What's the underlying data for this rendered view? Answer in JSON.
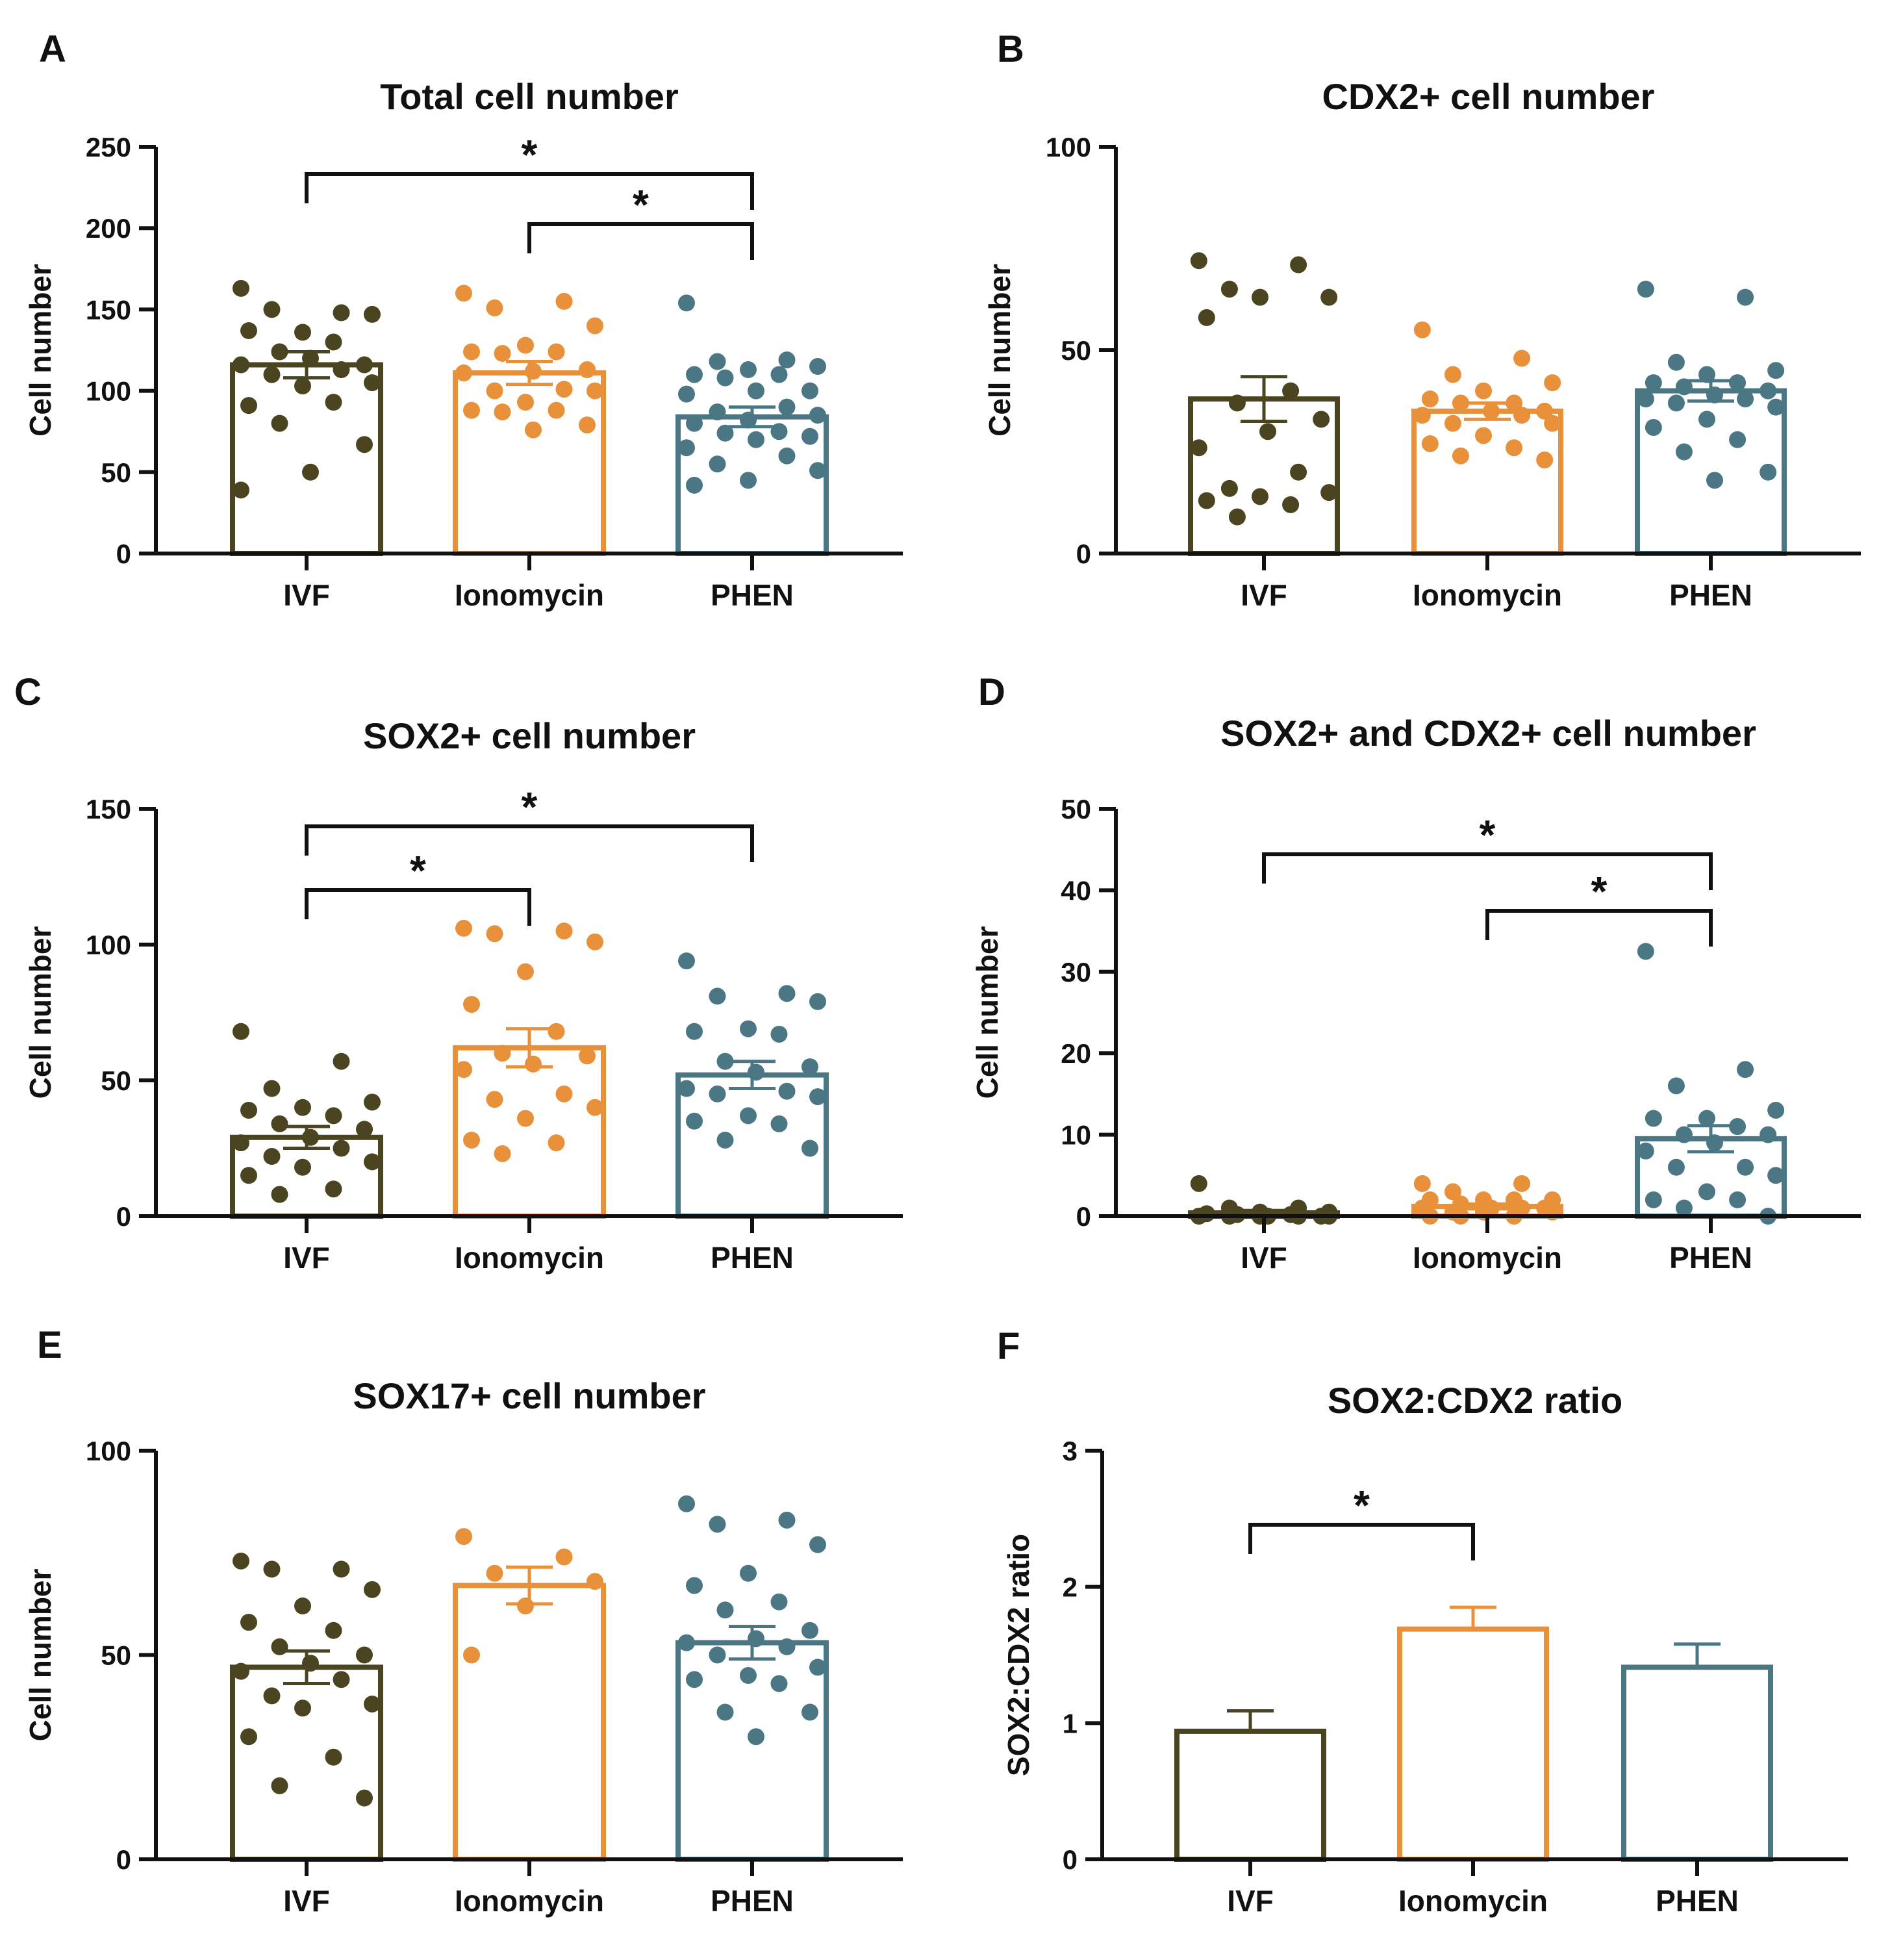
{
  "figure": {
    "groups": [
      "IVF",
      "Ionomycin",
      "PHEN"
    ],
    "colors": {
      "IVF": "#4a4520",
      "Ionomycin": "#e8913a",
      "PHEN": "#4b7785"
    }
  },
  "chart_data": [
    {
      "panel": "A",
      "type": "bar",
      "title": "Total cell number",
      "ylabel": "Cell number",
      "ylim": [
        0,
        250
      ],
      "yticks": [
        0,
        50,
        100,
        150,
        200,
        250
      ],
      "categories": [
        "IVF",
        "Ionomycin",
        "PHEN"
      ],
      "values": [
        116,
        111,
        84
      ],
      "errors": [
        8,
        7,
        6
      ],
      "points": [
        [
          163,
          148,
          150,
          147,
          136,
          137,
          130,
          124,
          116,
          120,
          116,
          113,
          110,
          105,
          103,
          91,
          93,
          80,
          67,
          50,
          39
        ],
        [
          160,
          155,
          151,
          140,
          128,
          124,
          124,
          123,
          113,
          112,
          111,
          101,
          100,
          100,
          93,
          88,
          88,
          87,
          79,
          76
        ],
        [
          154,
          119,
          118,
          115,
          113,
          110,
          110,
          108,
          100,
          100,
          98,
          90,
          87,
          85,
          82,
          80,
          75,
          74,
          72,
          70,
          65,
          60,
          55,
          51,
          45,
          42
        ]
      ],
      "significance": [
        {
          "from": 0,
          "to": 2,
          "label": "*"
        },
        {
          "from": 1,
          "to": 2,
          "label": "*"
        }
      ]
    },
    {
      "panel": "B",
      "type": "bar",
      "title": "CDX2+ cell number",
      "ylabel": "Cell number",
      "ylim": [
        0,
        100
      ],
      "yticks": [
        0,
        50,
        100
      ],
      "categories": [
        "IVF",
        "Ionomycin",
        "PHEN"
      ],
      "values": [
        38,
        35,
        40
      ],
      "errors": [
        5.5,
        2,
        2.5
      ],
      "points": [
        [
          72,
          71,
          65,
          63,
          63,
          58,
          40,
          37,
          33,
          30,
          26,
          20,
          16,
          15,
          14,
          13,
          12,
          9
        ],
        [
          55,
          48,
          44,
          42,
          40,
          38,
          37,
          37,
          35,
          35,
          34,
          34,
          32,
          32,
          29,
          27,
          26,
          24,
          23
        ],
        [
          65,
          63,
          47,
          45,
          44,
          42,
          42,
          41,
          40,
          39,
          38,
          38,
          37,
          36,
          33,
          31,
          28,
          25,
          20,
          18
        ]
      ],
      "significance": []
    },
    {
      "panel": "C",
      "type": "bar",
      "title": "SOX2+ cell number",
      "ylabel": "Cell number",
      "ylim": [
        0,
        150
      ],
      "yticks": [
        0,
        50,
        100,
        150
      ],
      "categories": [
        "IVF",
        "Ionomycin",
        "PHEN"
      ],
      "values": [
        29,
        62,
        52
      ],
      "errors": [
        4,
        7,
        5
      ],
      "points": [
        [
          68,
          57,
          47,
          42,
          40,
          39,
          37,
          34,
          32,
          29,
          27,
          25,
          22,
          20,
          18,
          15,
          10,
          8
        ],
        [
          106,
          105,
          104,
          101,
          90,
          78,
          68,
          60,
          59,
          56,
          54,
          45,
          43,
          40,
          36,
          28,
          27,
          23
        ],
        [
          94,
          82,
          81,
          79,
          69,
          68,
          67,
          57,
          55,
          53,
          47,
          46,
          45,
          44,
          37,
          35,
          34,
          28,
          25
        ]
      ],
      "significance": [
        {
          "from": 0,
          "to": 1,
          "label": "*"
        },
        {
          "from": 0,
          "to": 2,
          "label": "*"
        }
      ]
    },
    {
      "panel": "D",
      "type": "bar",
      "title": "SOX2+ and CDX2+ cell number",
      "ylabel": "Cell number",
      "ylim": [
        0,
        50
      ],
      "yticks": [
        0,
        10,
        20,
        30,
        40,
        50
      ],
      "categories": [
        "IVF",
        "Ionomycin",
        "PHEN"
      ],
      "values": [
        0.4,
        1.2,
        9.5
      ],
      "errors": [
        0.3,
        0.3,
        1.6
      ],
      "points": [
        [
          4,
          1,
          1,
          0.5,
          0.5,
          0.3,
          0.2,
          0.2,
          0,
          0,
          0,
          0,
          0,
          0,
          0
        ],
        [
          4,
          4,
          3,
          2,
          2,
          2,
          2,
          1.5,
          1,
          1,
          1,
          1,
          0.5,
          0.5,
          0.5,
          0,
          0,
          0
        ],
        [
          32.5,
          18,
          16,
          13,
          12,
          12,
          11,
          10,
          10,
          9,
          8,
          6,
          6,
          5,
          3,
          2,
          2,
          1,
          0
        ]
      ],
      "significance": [
        {
          "from": 0,
          "to": 2,
          "label": "*"
        },
        {
          "from": 1,
          "to": 2,
          "label": "*"
        }
      ]
    },
    {
      "panel": "E",
      "type": "bar",
      "title": "SOX17+ cell number",
      "ylabel": "Cell number",
      "ylim": [
        0,
        100
      ],
      "yticks": [
        0,
        50,
        100
      ],
      "categories": [
        "IVF",
        "Ionomycin",
        "PHEN"
      ],
      "values": [
        47,
        67,
        53
      ],
      "errors": [
        4,
        4.5,
        4
      ],
      "points": [
        [
          73,
          71,
          71,
          66,
          62,
          58,
          56,
          52,
          50,
          48,
          46,
          44,
          40,
          38,
          37,
          30,
          25,
          18,
          15
        ],
        [
          79,
          74,
          70,
          68,
          62,
          50
        ],
        [
          87,
          83,
          82,
          77,
          70,
          67,
          63,
          61,
          56,
          54,
          53,
          52,
          50,
          47,
          45,
          44,
          43,
          36,
          36,
          30
        ]
      ],
      "significance": []
    },
    {
      "panel": "F",
      "type": "bar",
      "title": "SOX2:CDX2 ratio",
      "ylabel": "SOX2:CDX2 ratio",
      "ylim": [
        0,
        3
      ],
      "yticks": [
        0,
        1,
        2,
        3
      ],
      "categories": [
        "IVF",
        "Ionomycin",
        "PHEN"
      ],
      "values": [
        0.94,
        1.69,
        1.41
      ],
      "errors": [
        0.15,
        0.16,
        0.17
      ],
      "points": [],
      "significance": [
        {
          "from": 0,
          "to": 1,
          "label": "*"
        }
      ]
    }
  ]
}
